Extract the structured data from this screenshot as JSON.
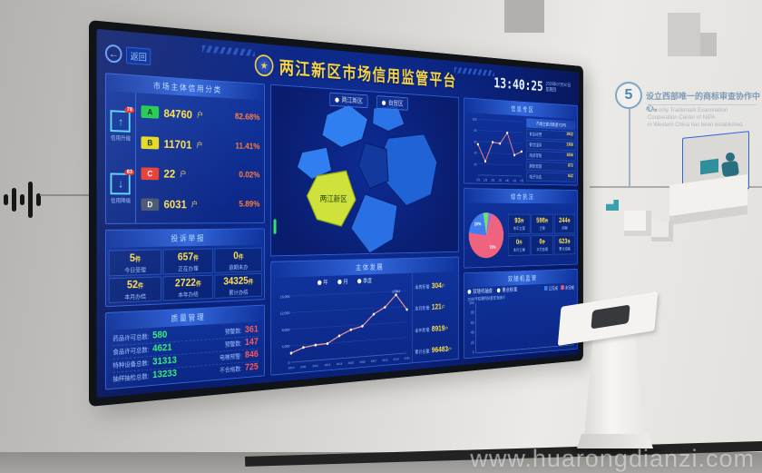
{
  "watermark": "www.huarongdianzi.com",
  "wall": {
    "milestone_number": "5",
    "milestone_zh": "设立西部唯一的商标审查协作中心。",
    "milestone_en_1": "The only Trademark Examination Cooperation Center of NIPA",
    "milestone_en_2": "in Western China has been established."
  },
  "screen": {
    "back_label": "返回",
    "header": {
      "title": "两江新区市场信用监管平台",
      "emblem": "★",
      "time": "13:40:25",
      "date_line1": "2020年07月30日",
      "date_line2": "星期四"
    },
    "credit_panel": {
      "title": "市场主体信用分类",
      "side_icons": [
        {
          "arrow": "↑",
          "badge": "78",
          "label": "信用升级"
        },
        {
          "arrow": "↓",
          "badge": "63",
          "label": "信用降级"
        }
      ],
      "rows": [
        {
          "grade": "A",
          "count": "84760",
          "unit": "户",
          "pct": "82.68%",
          "color": "#1ec94e"
        },
        {
          "grade": "B",
          "count": "11701",
          "unit": "户",
          "pct": "11.41%",
          "color": "#e6d822"
        },
        {
          "grade": "C",
          "count": "22",
          "unit": "户",
          "pct": "0.02%",
          "color": "#e83a30"
        },
        {
          "grade": "D",
          "count": "6031",
          "unit": "户",
          "pct": "5.89%",
          "color": "#47546e"
        }
      ]
    },
    "complaints_panel": {
      "title": "投诉举报",
      "stats": [
        {
          "value": "5",
          "unit": "件",
          "label": "今日受理"
        },
        {
          "value": "657",
          "unit": "件",
          "label": "正在办理"
        },
        {
          "value": "0",
          "unit": "件",
          "label": "逾期未办"
        },
        {
          "value": "52",
          "unit": "件",
          "label": "本月办结"
        },
        {
          "value": "2722",
          "unit": "件",
          "label": "本年办结"
        },
        {
          "value": "34325",
          "unit": "件",
          "label": "累计办结"
        }
      ]
    },
    "quality_panel": {
      "title": "质量管理",
      "rows": [
        {
          "label1": "药品许可总数:",
          "value1": "580",
          "label2": "预警数:",
          "value2": "361"
        },
        {
          "label1": "食品许可总数:",
          "value1": "4621",
          "label2": "预警数:",
          "value2": "147"
        },
        {
          "label1": "特种设备总数:",
          "value1": "31313",
          "label2": "电梯预警:",
          "value2": "846"
        },
        {
          "label1": "抽样抽检总数:",
          "value1": "13233",
          "label2": "不合格数:",
          "value2": "725"
        }
      ]
    },
    "map_panel": {
      "tabs": [
        {
          "label": "两江新区"
        },
        {
          "label": "自贸区"
        }
      ],
      "region_label": "两江新区"
    },
    "development_panel": {
      "title": "主体发展",
      "legend": [
        "年",
        "月",
        "季度"
      ],
      "stats": [
        {
          "label": "本周新增:",
          "value": "304",
          "unit": "户"
        },
        {
          "label": "本月新增:",
          "value": "121",
          "unit": "户"
        },
        {
          "label": "本年新增:",
          "value": "8919",
          "unit": "户"
        },
        {
          "label": "累计总量:",
          "value": "96483",
          "unit": "户"
        }
      ],
      "chart_data": {
        "type": "line",
        "x": [
          "2010",
          "2011",
          "2012",
          "2013",
          "2014",
          "2015",
          "2016",
          "2017",
          "2018",
          "2019",
          "2020"
        ],
        "values": [
          2500,
          3800,
          4200,
          4400,
          6300,
          7800,
          8600,
          11800,
          13600,
          17004,
          12600
        ],
        "ymax": 18000,
        "yticks": [
          "16,000",
          "12,000",
          "8,000",
          "4,000",
          "0"
        ],
        "annotation": {
          "index": 9,
          "text": "17004"
        },
        "line_color": "#ff9d9d"
      }
    },
    "info_panel": {
      "title": "信息专区",
      "list_header": "市场主体活跃度TOP5",
      "list": [
        {
          "label": "食品经营",
          "value": "1932"
        },
        {
          "label": "餐饮服务",
          "value": "1368"
        },
        {
          "label": "商贸零售",
          "value": "1056"
        },
        {
          "label": "建筑安装",
          "value": "873"
        },
        {
          "label": "电子信息",
          "value": "642"
        }
      ],
      "chart_data": {
        "type": "line",
        "x": [
          "1月",
          "2月",
          "3月",
          "4月",
          "5月",
          "6月",
          "7月"
        ],
        "values": [
          55,
          25,
          60,
          58,
          78,
          38,
          45
        ],
        "ymax": 100,
        "yticks": [
          "100",
          "80",
          "60",
          "40",
          "20"
        ],
        "line_color": "#ff8585"
      }
    },
    "enforcement_panel": {
      "title": "综合执法",
      "chart_data": {
        "type": "pie",
        "segments": [
          {
            "label": "72%",
            "pct": 72,
            "color": "#f0637e"
          },
          {
            "label": "20%",
            "pct": 20,
            "color": "#3f7df2"
          },
          {
            "label": "5%",
            "pct": 5,
            "color": "#6fe06d"
          },
          {
            "label": "3%",
            "pct": 3,
            "color": "#9a6cf0"
          }
        ]
      },
      "stats": [
        {
          "value": "93",
          "unit": "件",
          "label": "本年立案"
        },
        {
          "value": "598",
          "unit": "件",
          "label": "立案"
        },
        {
          "value": "244",
          "unit": "件",
          "label": "结案"
        },
        {
          "value": "0",
          "unit": "件",
          "label": "本月立案"
        },
        {
          "value": "0",
          "unit": "件",
          "label": "本月结案"
        },
        {
          "value": "623",
          "unit": "件",
          "label": "累计结案"
        }
      ]
    },
    "random_panel": {
      "title": "双随机监管",
      "options": [
        "双随机抽查",
        "重点检查"
      ],
      "legend": [
        {
          "label": "已完成",
          "color": "#3f7df2"
        },
        {
          "label": "未完成",
          "color": "#f0637e"
        }
      ],
      "caption": "2020年双随机抽查任务统计",
      "chart_data": {
        "type": "stacked-bar",
        "categories": [
          "1",
          "2",
          "3",
          "4",
          "5",
          "6",
          "7",
          "8",
          "9",
          "10",
          "11",
          "12",
          "13",
          "14"
        ],
        "series": [
          {
            "name": "已完成",
            "color": "#3f7df2",
            "values": [
              58,
              6,
              4,
              26,
              16,
              10,
              30,
              14,
              12,
              8,
              7,
              7,
              9,
              7
            ]
          },
          {
            "name": "未完成",
            "color": "#f0637e",
            "values": [
              32,
              3,
              2,
              24,
              6,
              4,
              38,
              8,
              6,
              4,
              4,
              3,
              4,
              3
            ]
          }
        ],
        "ymax": 100,
        "yticks": [
          "100",
          "80",
          "60",
          "40",
          "20"
        ]
      }
    }
  }
}
